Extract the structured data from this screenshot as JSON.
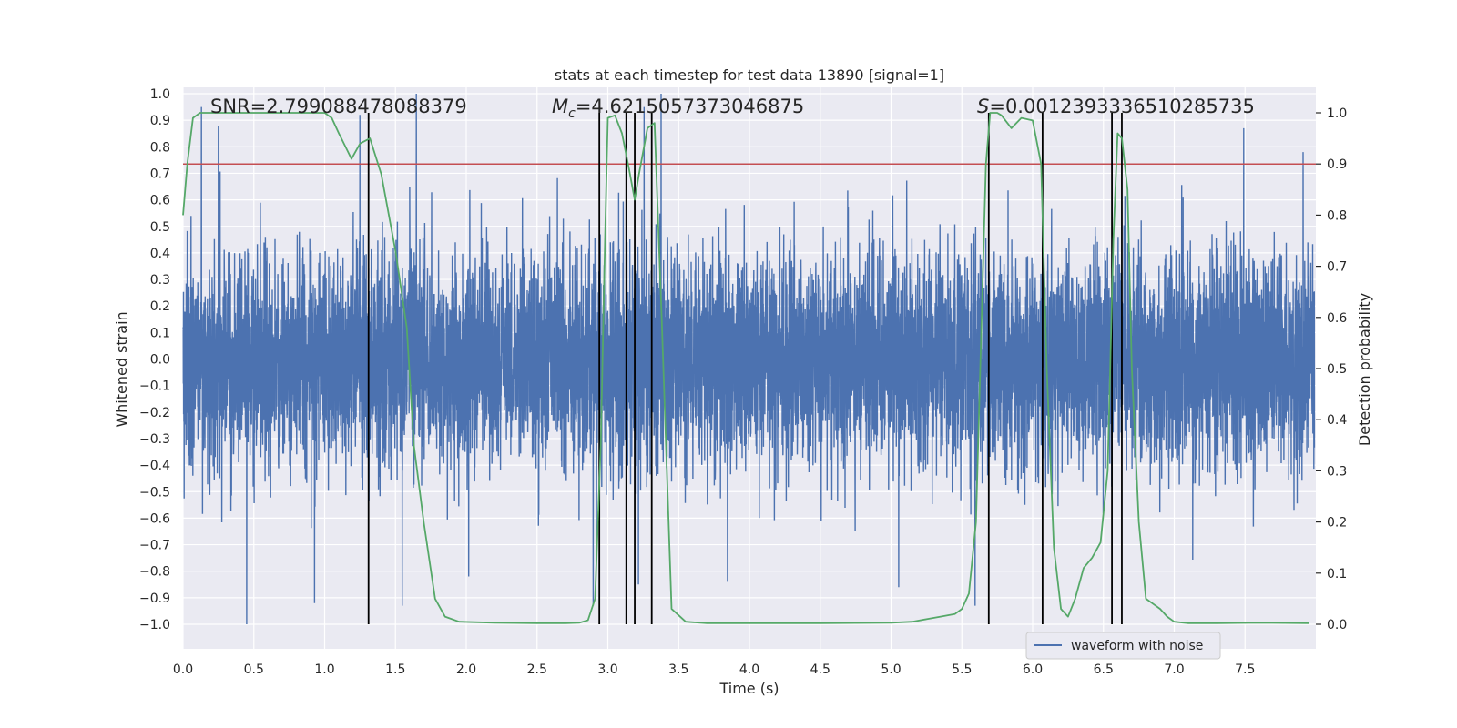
{
  "chart_data": {
    "type": "line",
    "title": "stats at each timestep for test data 13890 [signal=1]",
    "xlabel": "Time (s)",
    "ylabel": "Whitened strain",
    "y2label": "Detection probability",
    "xlim": [
      0.0,
      8.0
    ],
    "ylim": [
      -1.0,
      1.0
    ],
    "y2lim": [
      0.0,
      1.0
    ],
    "xticks": [
      "0.0",
      "0.5",
      "1.0",
      "1.5",
      "2.0",
      "2.5",
      "3.0",
      "3.5",
      "4.0",
      "4.5",
      "5.0",
      "5.5",
      "6.0",
      "6.5",
      "7.0",
      "7.5"
    ],
    "xtick_values": [
      0.0,
      0.5,
      1.0,
      1.5,
      2.0,
      2.5,
      3.0,
      3.5,
      4.0,
      4.5,
      5.0,
      5.5,
      6.0,
      6.5,
      7.0,
      7.5
    ],
    "yticks": [
      "1.0",
      "0.9",
      "0.8",
      "0.7",
      "0.6",
      "0.5",
      "0.4",
      "0.3",
      "0.2",
      "0.1",
      "0.0",
      "−0.1",
      "−0.2",
      "−0.3",
      "−0.4",
      "−0.5",
      "−0.6",
      "−0.7",
      "−0.8",
      "−0.9",
      "−1.0"
    ],
    "ytick_values": [
      1.0,
      0.9,
      0.8,
      0.7,
      0.6,
      0.5,
      0.4,
      0.3,
      0.2,
      0.1,
      0.0,
      -0.1,
      -0.2,
      -0.3,
      -0.4,
      -0.5,
      -0.6,
      -0.7,
      -0.8,
      -0.9,
      -1.0
    ],
    "y2ticks": [
      "1.0",
      "0.9",
      "0.8",
      "0.7",
      "0.6",
      "0.5",
      "0.4",
      "0.3",
      "0.2",
      "0.1",
      "0.0"
    ],
    "y2tick_values": [
      1.0,
      0.9,
      0.8,
      0.7,
      0.6,
      0.5,
      0.4,
      0.3,
      0.2,
      0.1,
      0.0
    ],
    "annotations": {
      "snr": "SNR=2.799088478088379",
      "mc_symbol": "M",
      "mc_sub": "c",
      "mc_value": "=4.6215057373046875",
      "s_symbol": "S",
      "s_value": "=0.0012393336510285735"
    },
    "threshold": {
      "value": 0.9,
      "axis": "y2",
      "color": "#c44e52"
    },
    "vertical_lines": [
      1.31,
      2.94,
      3.13,
      3.19,
      3.31,
      5.69,
      6.07,
      6.56,
      6.63
    ],
    "series": [
      {
        "name": "waveform with noise",
        "axis": "y",
        "color": "#4c72b0",
        "style": "dense noise",
        "n_samples": 8192,
        "sigma": 0.2,
        "seed": 13890,
        "peaks": [
          {
            "x": 0.13,
            "y": 0.95
          },
          {
            "x": 0.25,
            "y": 0.88
          },
          {
            "x": 0.45,
            "y": -1.0
          },
          {
            "x": 0.93,
            "y": -0.92
          },
          {
            "x": 1.25,
            "y": 0.92
          },
          {
            "x": 1.65,
            "y": 1.0
          },
          {
            "x": 1.55,
            "y": -0.93
          },
          {
            "x": 2.02,
            "y": -0.82
          },
          {
            "x": 2.9,
            "y": -0.93
          },
          {
            "x": 3.22,
            "y": -0.85
          },
          {
            "x": 3.26,
            "y": 0.95
          },
          {
            "x": 3.38,
            "y": 1.0
          },
          {
            "x": 3.85,
            "y": -0.84
          },
          {
            "x": 5.06,
            "y": -0.86
          },
          {
            "x": 5.6,
            "y": -0.93
          },
          {
            "x": 7.5,
            "y": 0.87
          },
          {
            "x": 7.92,
            "y": 0.78
          }
        ]
      },
      {
        "name": "detection probability",
        "axis": "y2",
        "color": "#55a868",
        "x": [
          0.0,
          0.03,
          0.07,
          0.12,
          0.2,
          0.3,
          0.5,
          0.7,
          0.9,
          1.0,
          1.05,
          1.1,
          1.19,
          1.25,
          1.32,
          1.4,
          1.5,
          1.58,
          1.63,
          1.7,
          1.78,
          1.85,
          1.95,
          2.2,
          2.5,
          2.7,
          2.8,
          2.86,
          2.91,
          2.95,
          2.98,
          3.0,
          3.05,
          3.1,
          3.15,
          3.19,
          3.22,
          3.28,
          3.33,
          3.38,
          3.45,
          3.55,
          3.7,
          4.0,
          4.5,
          5.0,
          5.15,
          5.25,
          5.35,
          5.45,
          5.5,
          5.55,
          5.6,
          5.64,
          5.67,
          5.7,
          5.72,
          5.75,
          5.78,
          5.85,
          5.92,
          6.0,
          6.06,
          6.1,
          6.15,
          6.2,
          6.25,
          6.3,
          6.36,
          6.42,
          6.48,
          6.53,
          6.57,
          6.6,
          6.63,
          6.67,
          6.7,
          6.75,
          6.8,
          6.9,
          6.95,
          7.0,
          7.1,
          7.3,
          7.6,
          7.95
        ],
        "y": [
          0.8,
          0.9,
          0.99,
          1.0,
          1.0,
          1.0,
          1.0,
          1.0,
          1.0,
          1.0,
          0.99,
          0.96,
          0.91,
          0.94,
          0.95,
          0.88,
          0.73,
          0.58,
          0.35,
          0.2,
          0.05,
          0.015,
          0.005,
          0.003,
          0.002,
          0.002,
          0.003,
          0.008,
          0.05,
          0.35,
          0.75,
          0.99,
          0.995,
          0.96,
          0.89,
          0.83,
          0.88,
          0.97,
          0.98,
          0.6,
          0.03,
          0.005,
          0.002,
          0.002,
          0.002,
          0.003,
          0.005,
          0.01,
          0.015,
          0.02,
          0.03,
          0.06,
          0.2,
          0.6,
          0.9,
          1.0,
          1.0,
          1.0,
          0.995,
          0.97,
          0.99,
          0.985,
          0.9,
          0.5,
          0.15,
          0.03,
          0.015,
          0.05,
          0.11,
          0.13,
          0.16,
          0.3,
          0.75,
          0.96,
          0.95,
          0.85,
          0.5,
          0.2,
          0.05,
          0.03,
          0.015,
          0.005,
          0.002,
          0.002,
          0.003,
          0.002
        ]
      }
    ],
    "legend": {
      "entries": [
        "waveform with noise"
      ],
      "location": "lower right"
    }
  }
}
